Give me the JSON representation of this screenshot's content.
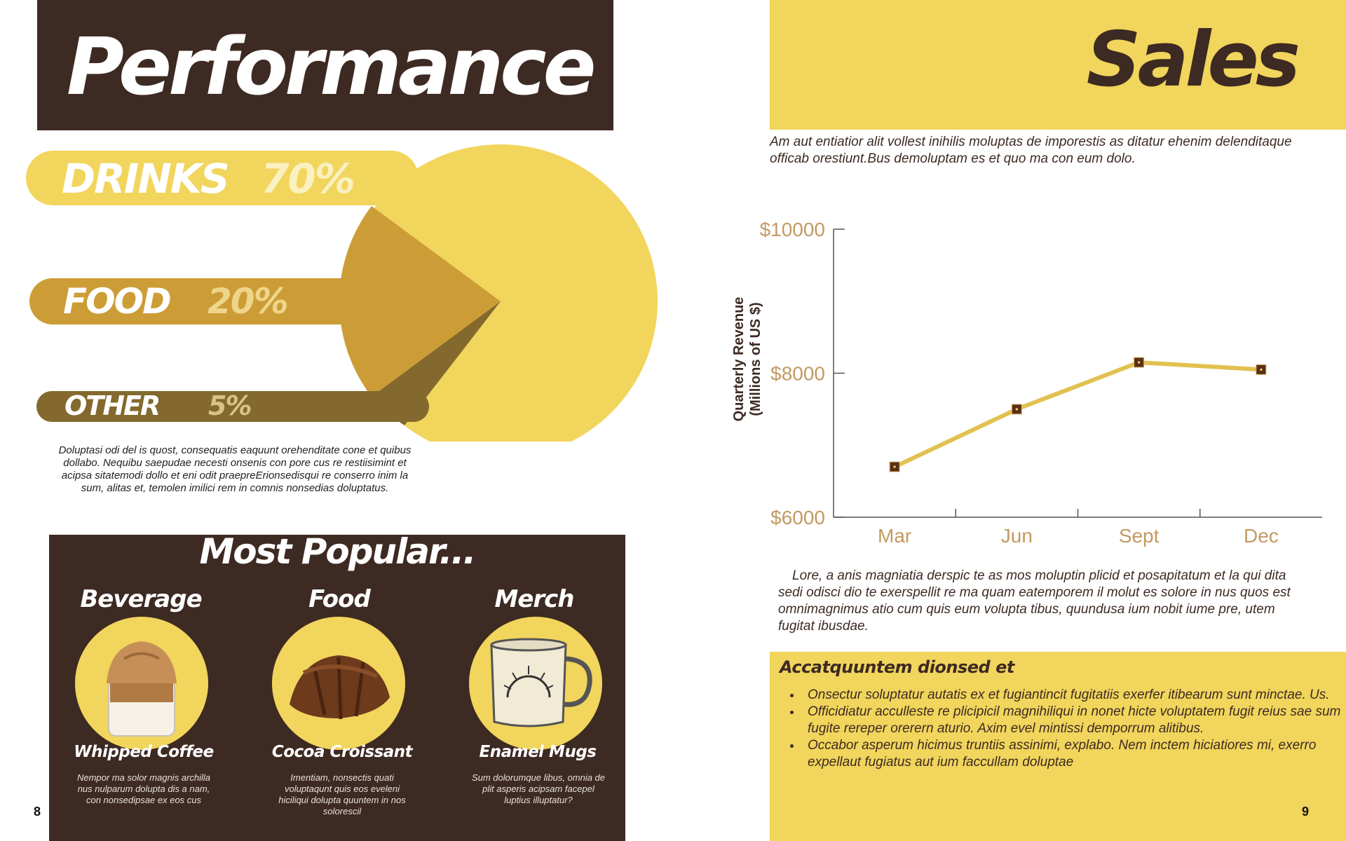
{
  "left_page": {
    "title": "Performance",
    "breakdown": [
      {
        "label": "DRINKS",
        "percent": "70%"
      },
      {
        "label": "FOOD",
        "percent": "20%"
      },
      {
        "label": "OTHER",
        "percent": "5%"
      }
    ],
    "paragraph": "Doluptasi odi del is quost, consequatis eaquunt orehenditate cone et quibus dollabo. Nequibu saepudae necesti onsenis con pore cus re restiisimint et acipsa sitatemodi dollo et eni odit praepreErionsedisqui re conserro inim la sum, alitas et, temolen imilici rem in comnis nonsedias doluptatus.",
    "popular": {
      "title": "Most Popular...",
      "items": [
        {
          "category": "Beverage",
          "name": "Whipped Coffee",
          "description": "Nempor ma solor magnis archilla nus nulparum dolupta dis a nam, con nonsedipsae ex eos cus"
        },
        {
          "category": "Food",
          "name": "Cocoa Croissant",
          "description": "Imentiam, nonsectis quati voluptaqunt quis eos eveleni hiciliqui dolupta quuntem in nos solorescil"
        },
        {
          "category": "Merch",
          "name": "Enamel Mugs",
          "description": "Sum dolorumque libus, omnia de plit asperis acipsam facepel luptius illuptatur?"
        }
      ]
    },
    "page_number": "8"
  },
  "right_page": {
    "title": "Sales",
    "intro": "Am aut entiatior alit vollest inihilis moluptas de imporestis as ditatur ehenim delenditaque officab orestiunt.Bus demoluptam es et quo ma con eum dolo.",
    "chart_paragraph": "Lore, a anis magniatia derspic te as mos moluptin plicid et posapitatum et la qui dita sedi odisci dio te exerspellit re ma quam eatemporem il molut es solore in nus quos est omnimagnimus atio cum quis eum volupta tibus, quundusa ium nobit iume pre, utem fugitat ibusdae.",
    "note": {
      "title": "Accatquuntem dionsed et",
      "bullets": [
        "Onsectur soluptatur autatis ex et fugiantincit fugitatiis exerfer itibearum sunt minctae. Us.",
        "Officidiatur acculleste re plicipicil magnihiliqui in nonet hicte voluptatem fugit reius sae sum fugite rereper orerern aturio. Axim evel mintissi demporrum alitibus.",
        "Occabor asperum hicimus truntiis assinimi, explabo. Nem inctem hiciatiores mi, exerro expellaut fugiatus aut ium faccullam doluptae"
      ]
    },
    "page_number": "9"
  },
  "colors": {
    "brown": "#3d2a22",
    "yellow": "#f1d55c",
    "gold": "#cc9d37",
    "olive": "#83692d",
    "tan": "#c39a62"
  },
  "chart_data": [
    {
      "type": "pie",
      "slices": [
        {
          "label": "DRINKS",
          "value": 70
        },
        {
          "label": "FOOD",
          "value": 20
        },
        {
          "label": "OTHER",
          "value": 5
        }
      ]
    },
    {
      "type": "line",
      "ylabel": "Quarterly Revenue (Millions of US $)",
      "ylabel_lines": [
        "Quarterly Revenue",
        "(Millions of US $)"
      ],
      "categories": [
        "Mar",
        "Jun",
        "Sept",
        "Dec"
      ],
      "series": [
        {
          "values": [
            6700,
            7500,
            8150,
            8050
          ]
        }
      ],
      "ylim": [
        6000,
        10000
      ],
      "yticks": [
        "$6000",
        "$8000",
        "$10000"
      ],
      "ytick_values": [
        6000,
        8000,
        10000
      ],
      "grid": false
    }
  ]
}
